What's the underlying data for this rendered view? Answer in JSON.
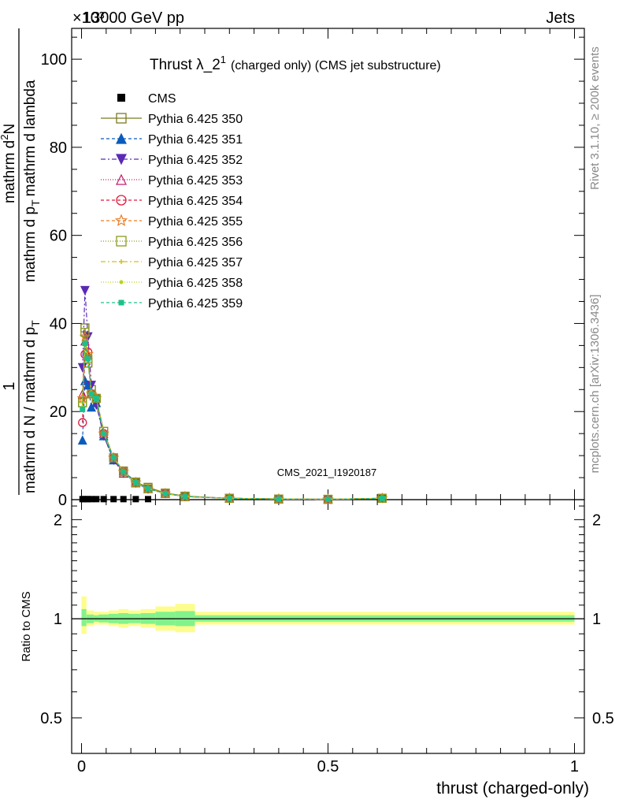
{
  "header": {
    "energy_label": "13000 GeV pp",
    "category_label": "Jets",
    "exponent_label": "×10³"
  },
  "title": {
    "main": "Thrust λ_2",
    "superscript": "1",
    "suffix": "(charged only) (CMS jet substructure)"
  },
  "side_labels": {
    "rivet": "Rivet 3.1.10, ≥ 200k events",
    "mcplots": "mcplots.cern.ch [arXiv:1306.3436]"
  },
  "watermark": "CMS_2021_I1920187",
  "y_axis_label": {
    "numerator_main": "1",
    "num2_line1": "mathrm d",
    "num2_sup": "2",
    "num2_line1b": "N",
    "denominator_main": "mathrm d N / mathrm d p",
    "den_sub": "T",
    "den2": "mathrm d p",
    "den2_sub": "T",
    "den3": "mathrm d lambda"
  },
  "colors": {
    "band_outer": "#fdfd8e",
    "band_inner": "#83f28c"
  },
  "chart_data": [
    {
      "type": "line",
      "panel": "main",
      "xlabel": "",
      "ylim": [
        0,
        107
      ],
      "xlim": [
        -0.02,
        1.02
      ],
      "y_ticks": [
        0,
        20,
        40,
        60,
        80,
        100
      ],
      "y_tick_labels": [
        "0",
        "20",
        "40",
        "60",
        "80",
        "100"
      ],
      "legend_position": "top-left",
      "x": [
        0.002,
        0.007,
        0.013,
        0.02,
        0.03,
        0.045,
        0.065,
        0.085,
        0.11,
        0.135,
        0.17,
        0.21,
        0.3,
        0.4,
        0.5,
        0.61
      ],
      "cms": {
        "name": "CMS",
        "x": [
          0.002,
          0.007,
          0.013,
          0.02,
          0.03,
          0.045,
          0.065,
          0.085,
          0.11,
          0.135
        ],
        "y": [
          0.12,
          0.12,
          0.12,
          0.12,
          0.12,
          0.12,
          0.12,
          0.12,
          0.12,
          0.12
        ]
      },
      "series": [
        {
          "name": "Pythia 6.425 350",
          "color": "#7b7b22",
          "marker": "square-open",
          "dash": "",
          "values": [
            22,
            39,
            31,
            25,
            23,
            15.5,
            9.5,
            6.5,
            4,
            2.8,
            1.5,
            0.8,
            0.3,
            0.15,
            0.08,
            0.3
          ]
        },
        {
          "name": "Pythia 6.425 351",
          "color": "#0b5bbd",
          "marker": "triangle-up",
          "dash": "4,3",
          "values": [
            13.5,
            27,
            26,
            21,
            22,
            14.5,
            9,
            6.5,
            4,
            2.5,
            1.4,
            0.7,
            0.3,
            0.15,
            0.08,
            0.3
          ]
        },
        {
          "name": "Pythia 6.425 352",
          "color": "#5a2ab4",
          "marker": "triangle-down",
          "dash": "6,3,2,3",
          "values": [
            30,
            47.5,
            37,
            26,
            21.5,
            14.5,
            9,
            6,
            3.8,
            2.4,
            1.4,
            0.7,
            0.3,
            0.15,
            0.08,
            0.3
          ]
        },
        {
          "name": "Pythia 6.425 353",
          "color": "#c21d6c",
          "marker": "triangle-up-open",
          "dash": "1,2",
          "values": [
            24,
            36,
            33,
            24,
            23,
            15,
            9.5,
            6,
            3.8,
            2.5,
            1.4,
            0.7,
            0.3,
            0.15,
            0.08,
            0.3
          ]
        },
        {
          "name": "Pythia 6.425 354",
          "color": "#e0183a",
          "marker": "circle-open",
          "dash": "4,3",
          "values": [
            17.5,
            33,
            33.5,
            24,
            23,
            15,
            9.5,
            6.3,
            3.9,
            2.5,
            1.4,
            0.7,
            0.3,
            0.15,
            0.08,
            0.3
          ]
        },
        {
          "name": "Pythia 6.425 355",
          "color": "#f07a1d",
          "marker": "star-open",
          "dash": "4,3",
          "values": [
            23,
            37,
            33,
            24,
            23,
            15,
            9.5,
            6.3,
            3.9,
            2.5,
            1.4,
            0.7,
            0.3,
            0.15,
            0.08,
            0.3
          ]
        },
        {
          "name": "Pythia 6.425 356",
          "color": "#8a9a1c",
          "marker": "square-open",
          "dash": "1,2",
          "values": [
            22,
            38,
            32,
            24,
            23,
            15.5,
            9.5,
            6.3,
            3.9,
            2.5,
            1.4,
            0.7,
            0.3,
            0.15,
            0.08,
            0.3
          ]
        },
        {
          "name": "Pythia 6.425 357",
          "color": "#d4c010",
          "marker": "cross-small",
          "dash": "6,3,2,3",
          "values": [
            22,
            36,
            32,
            24,
            23,
            15,
            9.5,
            6.3,
            3.9,
            2.5,
            1.4,
            0.7,
            0.3,
            0.15,
            0.08,
            0.3
          ]
        },
        {
          "name": "Pythia 6.425 358",
          "color": "#b8d41a",
          "marker": "dot",
          "dash": "1,2",
          "values": [
            21,
            35,
            32,
            24,
            23,
            15,
            9.5,
            6.3,
            3.9,
            2.5,
            1.4,
            0.7,
            0.3,
            0.15,
            0.08,
            0.3
          ]
        },
        {
          "name": "Pythia 6.425 359",
          "color": "#1ec08a",
          "marker": "square-small",
          "dash": "4,3",
          "values": [
            20.5,
            35.5,
            32,
            24,
            23,
            15,
            9.5,
            6.3,
            3.9,
            2.5,
            1.4,
            0.7,
            0.3,
            0.15,
            0.08,
            0.3
          ]
        }
      ]
    },
    {
      "type": "area",
      "panel": "ratio",
      "xlabel": "thrust (charged-only)",
      "ylabel": "Ratio to CMS",
      "xlim": [
        -0.02,
        1.02
      ],
      "ylim": [
        0.39,
        2.3
      ],
      "log_y": true,
      "x_ticks": [
        0,
        0.5,
        1
      ],
      "x_tick_labels": [
        "0",
        "0.5",
        "1"
      ],
      "y_ticks": [
        0.5,
        1,
        2
      ],
      "y_tick_labels": [
        "0.5",
        "1",
        "2"
      ],
      "bins": [
        {
          "x0": 0.0,
          "x1": 0.01,
          "outer": [
            0.9,
            1.17
          ],
          "inner": [
            0.95,
            1.07
          ]
        },
        {
          "x0": 0.01,
          "x1": 0.025,
          "outer": [
            0.95,
            1.06
          ],
          "inner": [
            0.97,
            1.03
          ]
        },
        {
          "x0": 0.025,
          "x1": 0.035,
          "outer": [
            0.96,
            1.05
          ],
          "inner": [
            0.98,
            1.025
          ]
        },
        {
          "x0": 0.035,
          "x1": 0.055,
          "outer": [
            0.96,
            1.05
          ],
          "inner": [
            0.975,
            1.03
          ]
        },
        {
          "x0": 0.055,
          "x1": 0.075,
          "outer": [
            0.95,
            1.06
          ],
          "inner": [
            0.97,
            1.035
          ]
        },
        {
          "x0": 0.075,
          "x1": 0.095,
          "outer": [
            0.94,
            1.07
          ],
          "inner": [
            0.965,
            1.04
          ]
        },
        {
          "x0": 0.095,
          "x1": 0.12,
          "outer": [
            0.95,
            1.06
          ],
          "inner": [
            0.97,
            1.035
          ]
        },
        {
          "x0": 0.12,
          "x1": 0.15,
          "outer": [
            0.94,
            1.07
          ],
          "inner": [
            0.965,
            1.04
          ]
        },
        {
          "x0": 0.15,
          "x1": 0.19,
          "outer": [
            0.92,
            1.09
          ],
          "inner": [
            0.955,
            1.05
          ]
        },
        {
          "x0": 0.19,
          "x1": 0.23,
          "outer": [
            0.91,
            1.11
          ],
          "inner": [
            0.95,
            1.055
          ]
        },
        {
          "x0": 0.23,
          "x1": 1.0,
          "outer": [
            0.96,
            1.05
          ],
          "inner": [
            0.98,
            1.025
          ]
        }
      ],
      "reference_value": 1
    }
  ]
}
